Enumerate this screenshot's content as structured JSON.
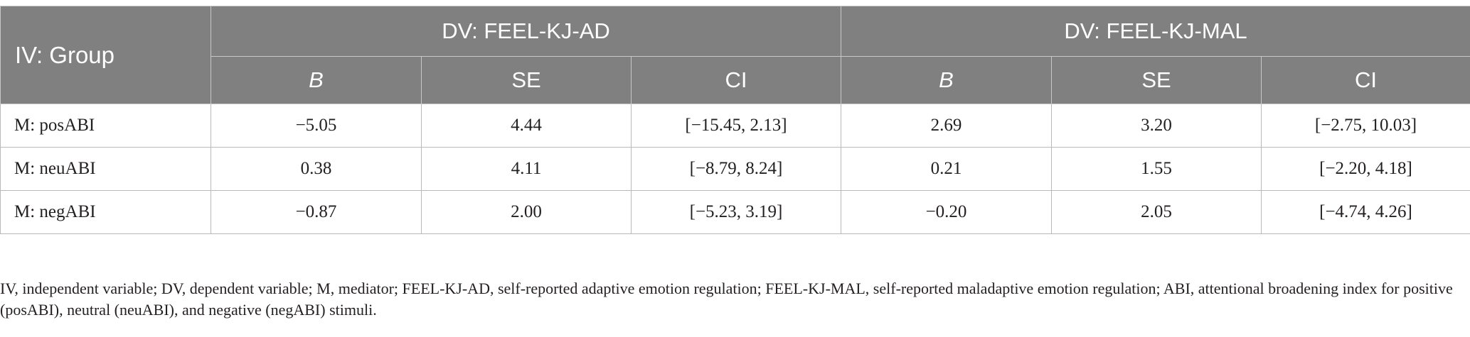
{
  "table": {
    "group_header": "IV: Group",
    "dv_headers": [
      "DV: FEEL-KJ-AD",
      "DV: FEEL-KJ-MAL"
    ],
    "sub_headers": [
      "B",
      "SE",
      "CI",
      "B",
      "SE",
      "CI"
    ],
    "rows": [
      [
        "M: posABI",
        "−5.05",
        "4.44",
        "[−15.45, 2.13]",
        "2.69",
        "3.20",
        "[−2.75, 10.03]"
      ],
      [
        "M: neuABI",
        "0.38",
        "4.11",
        "[−8.79, 8.24]",
        "0.21",
        "1.55",
        "[−2.20, 4.18]"
      ],
      [
        "M: negABI",
        "−0.87",
        "2.00",
        "[−5.23, 3.19]",
        "−0.20",
        "2.05",
        "[−4.74, 4.26]"
      ]
    ]
  },
  "footnote": "IV, independent variable; DV, dependent variable; M, mediator; FEEL-KJ-AD, self-reported adaptive emotion regulation; FEEL-KJ-MAL, self-reported maladaptive emotion regulation; ABI, attentional broadening index for positive (posABI), neutral (neuABI), and negative (negABI) stimuli."
}
